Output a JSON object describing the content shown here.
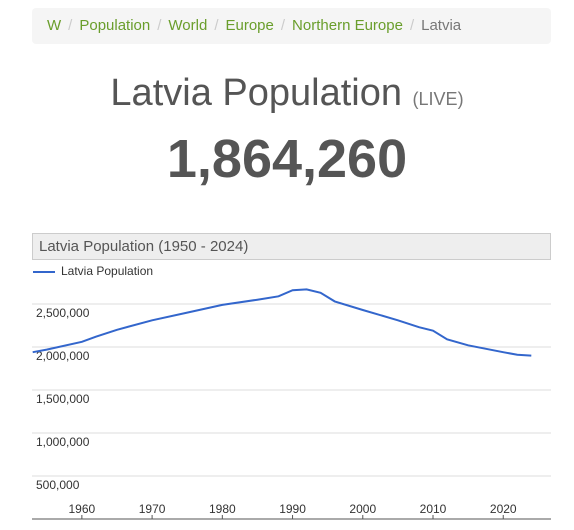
{
  "breadcrumb": [
    "W",
    "Population",
    "World",
    "Europe",
    "Northern Europe",
    "Latvia"
  ],
  "title": "Latvia Population",
  "live": "(LIVE)",
  "counter": "1,864,260",
  "chart_data": {
    "type": "line",
    "title": "Latvia Population (1950 - 2024)",
    "x": [
      1953,
      1955,
      1960,
      1962,
      1965,
      1970,
      1975,
      1980,
      1985,
      1988,
      1990,
      1992,
      1994,
      1996,
      2000,
      2005,
      2008,
      2010,
      2012,
      2015,
      2020,
      2022,
      2024
    ],
    "series": [
      {
        "name": "Latvia Population",
        "color": "#3366cc",
        "values": [
          1940000,
          1970000,
          2060000,
          2120000,
          2200000,
          2310000,
          2400000,
          2490000,
          2550000,
          2590000,
          2660000,
          2670000,
          2630000,
          2530000,
          2430000,
          2310000,
          2230000,
          2190000,
          2090000,
          2020000,
          1940000,
          1910000,
          1900000
        ]
      }
    ],
    "xlim": [
      1952.9,
      2026.8
    ],
    "xticks": [
      1960,
      1970,
      1980,
      1990,
      2000,
      2010,
      2020
    ],
    "ylim": [
      0,
      3000000
    ],
    "yticks": [
      {
        "value": 500000,
        "label": "500,000"
      },
      {
        "value": 1000000,
        "label": "1,000,000"
      },
      {
        "value": 1500000,
        "label": "1,500,000"
      },
      {
        "value": 2000000,
        "label": "2,000,000"
      },
      {
        "value": 2500000,
        "label": "2,500,000"
      }
    ],
    "grid": true
  }
}
